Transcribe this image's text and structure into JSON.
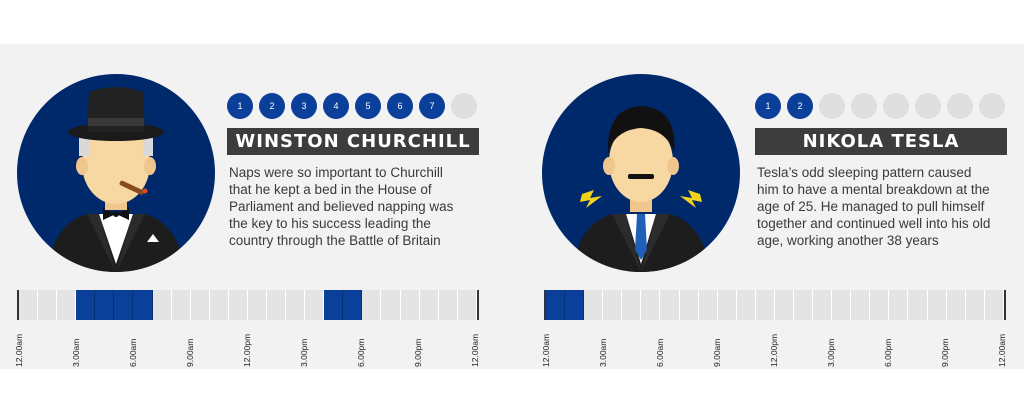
{
  "profiles": [
    {
      "id": "churchill",
      "name": "WINSTON CHURCHILL",
      "dots": [
        "1",
        "2",
        "3",
        "4",
        "5",
        "6",
        "7",
        ""
      ],
      "active_dots": 7,
      "description_lines": [
        "Naps were so important to Churchill",
        "that he kept a bed in the House of",
        "Parliament and believed napping was",
        "the key to his success leading the",
        "country through the Battle of Britain"
      ],
      "asleep_segments": [
        3,
        4,
        5,
        6,
        16,
        17
      ],
      "timeline_labels": [
        "12.00am",
        "3.00am",
        "6.00am",
        "9.00am",
        "12.00pm",
        "3.00pm",
        "6.00pm",
        "9.00pm",
        "12.00am"
      ]
    },
    {
      "id": "tesla",
      "name": "NIKOLA TESLA",
      "dots": [
        "1",
        "2",
        "",
        "",
        "",
        "",
        "",
        ""
      ],
      "active_dots": 2,
      "description_lines": [
        "Tesla’s odd sleeping pattern caused",
        "him to have a mental breakdown at the",
        "age of 25. He managed to pull himself",
        "together and continued well into his old",
        "age, working another 38 years"
      ],
      "asleep_segments": [
        0,
        1
      ],
      "timeline_labels": [
        "12.00am",
        "3.00am",
        "6.00am",
        "9.00am",
        "12.00pm",
        "3.00pm",
        "6.00pm",
        "9.00pm",
        "12.00am"
      ]
    }
  ],
  "colors": {
    "portrait_bg": "#00296b",
    "active_dot": "#0a3f9a",
    "inactive_dot": "#dedede",
    "sleep_bar": "#0a3f9a",
    "awake_bar": "#e4e4e4",
    "name_bar": "#3d3d3d"
  }
}
